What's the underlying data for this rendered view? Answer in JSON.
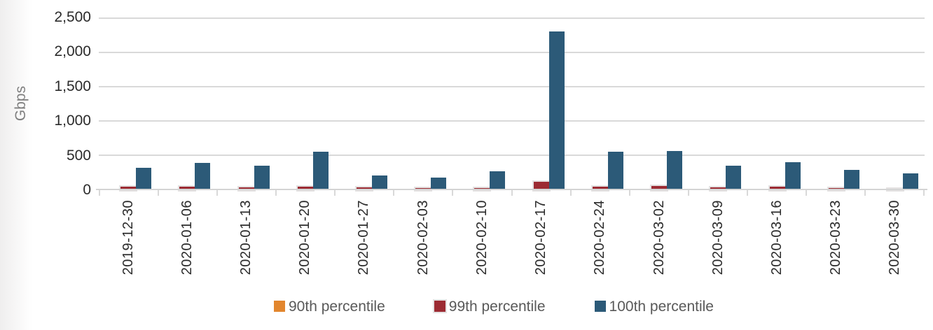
{
  "chart_data": {
    "type": "bar",
    "title": "",
    "ylabel": "Gbps",
    "xlabel": "",
    "ylim": [
      0,
      2500
    ],
    "ytick_step": 500,
    "ytick_labels": [
      "2,500",
      "2,000",
      "1,500",
      "1,000",
      "500",
      "0"
    ],
    "grid": true,
    "legend_position": "bottom",
    "categories": [
      "2019-12-30",
      "2020-01-06",
      "2020-01-13",
      "2020-01-20",
      "2020-01-27",
      "2020-02-03",
      "2020-02-10",
      "2020-02-17",
      "2020-02-24",
      "2020-03-02",
      "2020-03-09",
      "2020-03-16",
      "2020-03-23",
      "2020-03-30"
    ],
    "series": [
      {
        "name": "90th percentile",
        "color": "#E2862E",
        "outlined": false,
        "values": [
          20,
          20,
          15,
          20,
          15,
          15,
          15,
          25,
          20,
          20,
          15,
          20,
          15,
          15
        ]
      },
      {
        "name": "99th percentile",
        "color": "#9C2B33",
        "outlined": true,
        "values": [
          50,
          50,
          40,
          50,
          40,
          35,
          30,
          120,
          55,
          65,
          40,
          55,
          35,
          25
        ]
      },
      {
        "name": "100th percentile",
        "color": "#2C5A78",
        "outlined": false,
        "values": [
          325,
          395,
          350,
          555,
          215,
          185,
          275,
          2300,
          560,
          570,
          355,
          410,
          295,
          240
        ]
      }
    ],
    "grid_color": "#D9D9D9",
    "axis_text_color": "#2B2B2B",
    "legend_text_color": "#595959"
  }
}
